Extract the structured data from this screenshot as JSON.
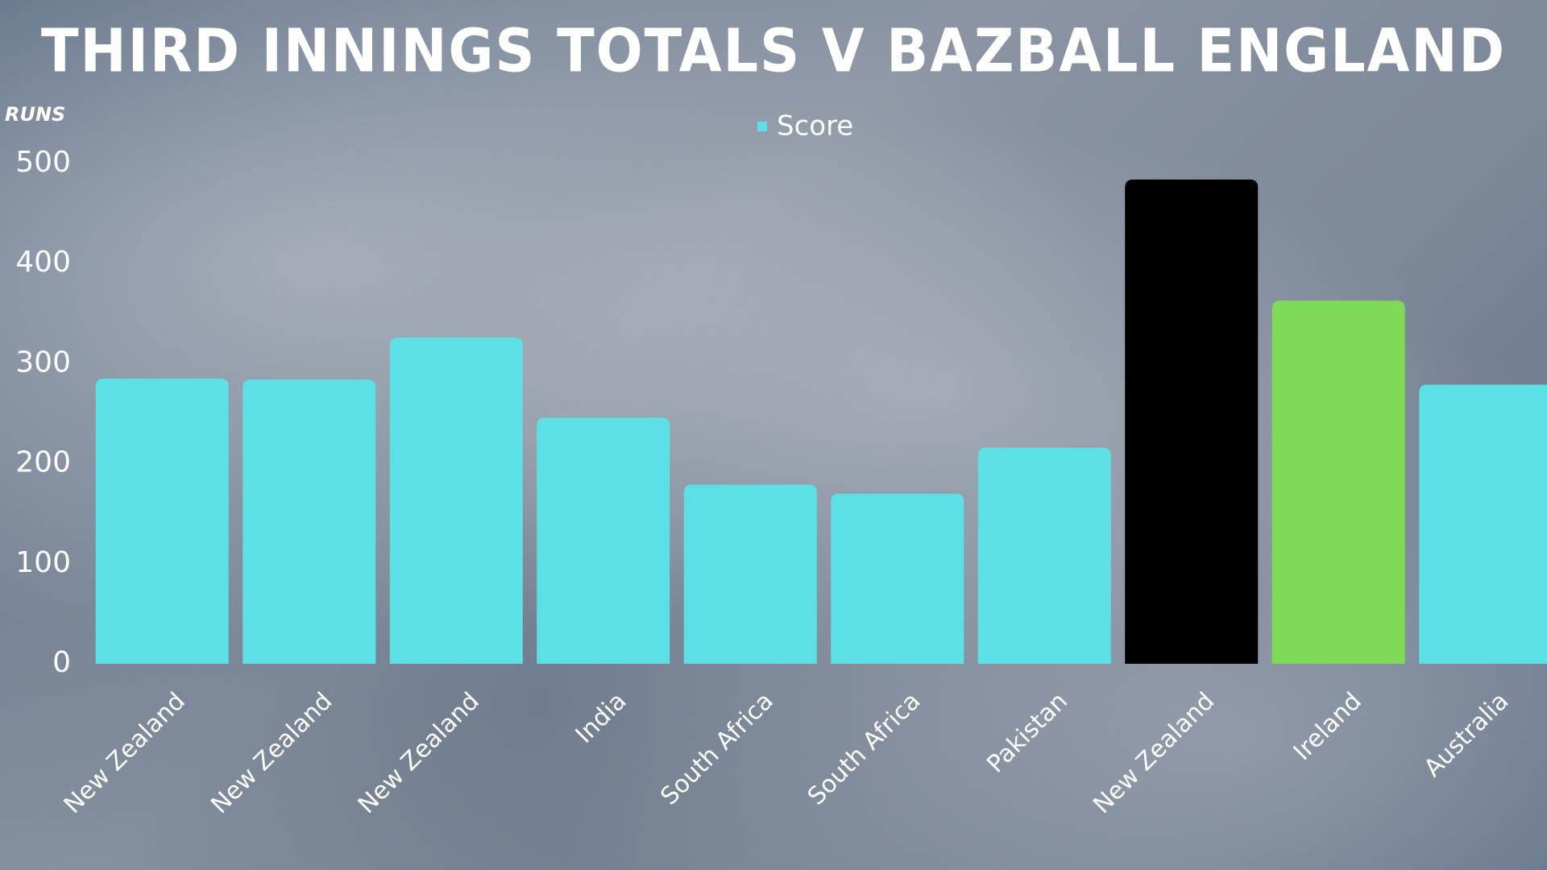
{
  "chart_data": {
    "type": "bar",
    "title": "THIRD INNINGS TOTALS V BAZBALL ENGLAND",
    "y_label": "RUNS",
    "categories": [
      "New Zealand",
      "New Zealand",
      "New Zealand",
      "India",
      "South Africa",
      "South Africa",
      "Pakistan",
      "New Zealand",
      "Ireland",
      "Australia"
    ],
    "series": [
      {
        "name": "Score",
        "color": "#5ce0e6",
        "values": [
          285,
          284,
          326,
          246,
          179,
          170,
          216,
          484,
          363,
          279
        ]
      }
    ],
    "bar_colors": [
      "#5ce0e6",
      "#5ce0e6",
      "#5ce0e6",
      "#5ce0e6",
      "#5ce0e6",
      "#5ce0e6",
      "#5ce0e6",
      "#000000",
      "#7ed957",
      "#5ce0e6"
    ],
    "ylim": [
      0,
      500
    ],
    "yticks": [
      0,
      100,
      200,
      300,
      400,
      500
    ],
    "grid": false
  }
}
